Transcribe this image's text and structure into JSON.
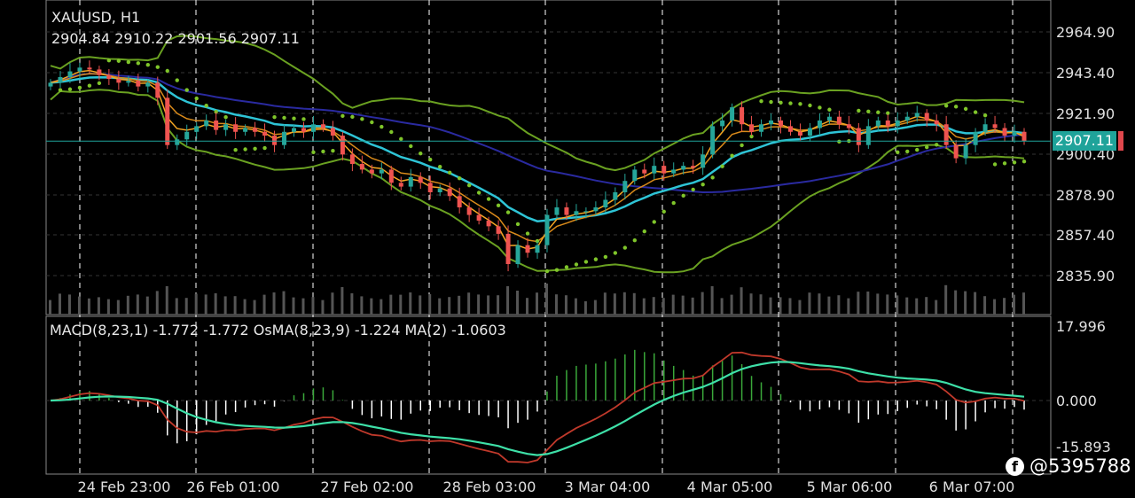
{
  "header": {
    "symbol": "XAUUSD, H1",
    "ohlc": "2904.84 2910.22 2901.56 2907.11"
  },
  "macd_header": "MACD(8,23,1) -1.772 -1.772 OsMA(8,23,9) -1.224 MA(2) -1.0603",
  "price_axis": [
    "2964.90",
    "2943.40",
    "2921.90",
    "2900.40",
    "2878.90",
    "2857.40",
    "2835.90"
  ],
  "macd_axis": [
    "17.996",
    "0.000",
    "-15.893"
  ],
  "current_price": "2907.11",
  "time_axis": [
    "24 Feb 23:00",
    "26 Feb 01:00",
    "27 Feb 02:00",
    "28 Feb 03:00",
    "3 Mar 04:00",
    "4 Mar 05:00",
    "5 Mar 06:00",
    "6 Mar 07:00"
  ],
  "watermark": "@5395788",
  "colors": {
    "bull": "#26a69a",
    "bear": "#ef5350",
    "bands": "#6aa121",
    "sar": "#7fc52a",
    "ema_fast": "#f5a623",
    "ema_mid": "#d98a1a",
    "sma20": "#2ec4d6",
    "sma50": "#2a2aa0",
    "macd_main": "#3ee0a8",
    "macd_signal": "#c0392b",
    "hist_pos": "#3aa83a",
    "hist_neg": "#ffffff",
    "price_line": "#1fa39a"
  },
  "chart_data": {
    "type": "candlestick",
    "timeframe": "H1",
    "ylim": [
      2835.9,
      2964.9
    ],
    "closes": [
      2938,
      2941,
      2944,
      2946,
      2945,
      2942,
      2940,
      2938,
      2939,
      2936,
      2938,
      2930,
      2905,
      2908,
      2912,
      2915,
      2918,
      2913,
      2916,
      2912,
      2914,
      2912,
      2910,
      2905,
      2912,
      2914,
      2912,
      2916,
      2914,
      2910,
      2900,
      2895,
      2892,
      2890,
      2892,
      2885,
      2883,
      2888,
      2885,
      2880,
      2882,
      2878,
      2872,
      2868,
      2865,
      2862,
      2858,
      2842,
      2852,
      2848,
      2852,
      2868,
      2872,
      2868,
      2870,
      2870,
      2872,
      2876,
      2880,
      2886,
      2892,
      2890,
      2894,
      2890,
      2892,
      2894,
      2893,
      2900,
      2915,
      2918,
      2925,
      2916,
      2912,
      2916,
      2918,
      2915,
      2912,
      2910,
      2914,
      2918,
      2920,
      2916,
      2914,
      2905,
      2915,
      2918,
      2915,
      2918,
      2920,
      2922,
      2918,
      2916,
      2905,
      2898,
      2905,
      2912,
      2916,
      2914,
      2910,
      2912,
      2907.11
    ],
    "indicators": [
      "Bollinger Bands",
      "Parabolic SAR",
      "Moving Averages",
      "Volumes",
      "MACD",
      "OsMA"
    ]
  }
}
